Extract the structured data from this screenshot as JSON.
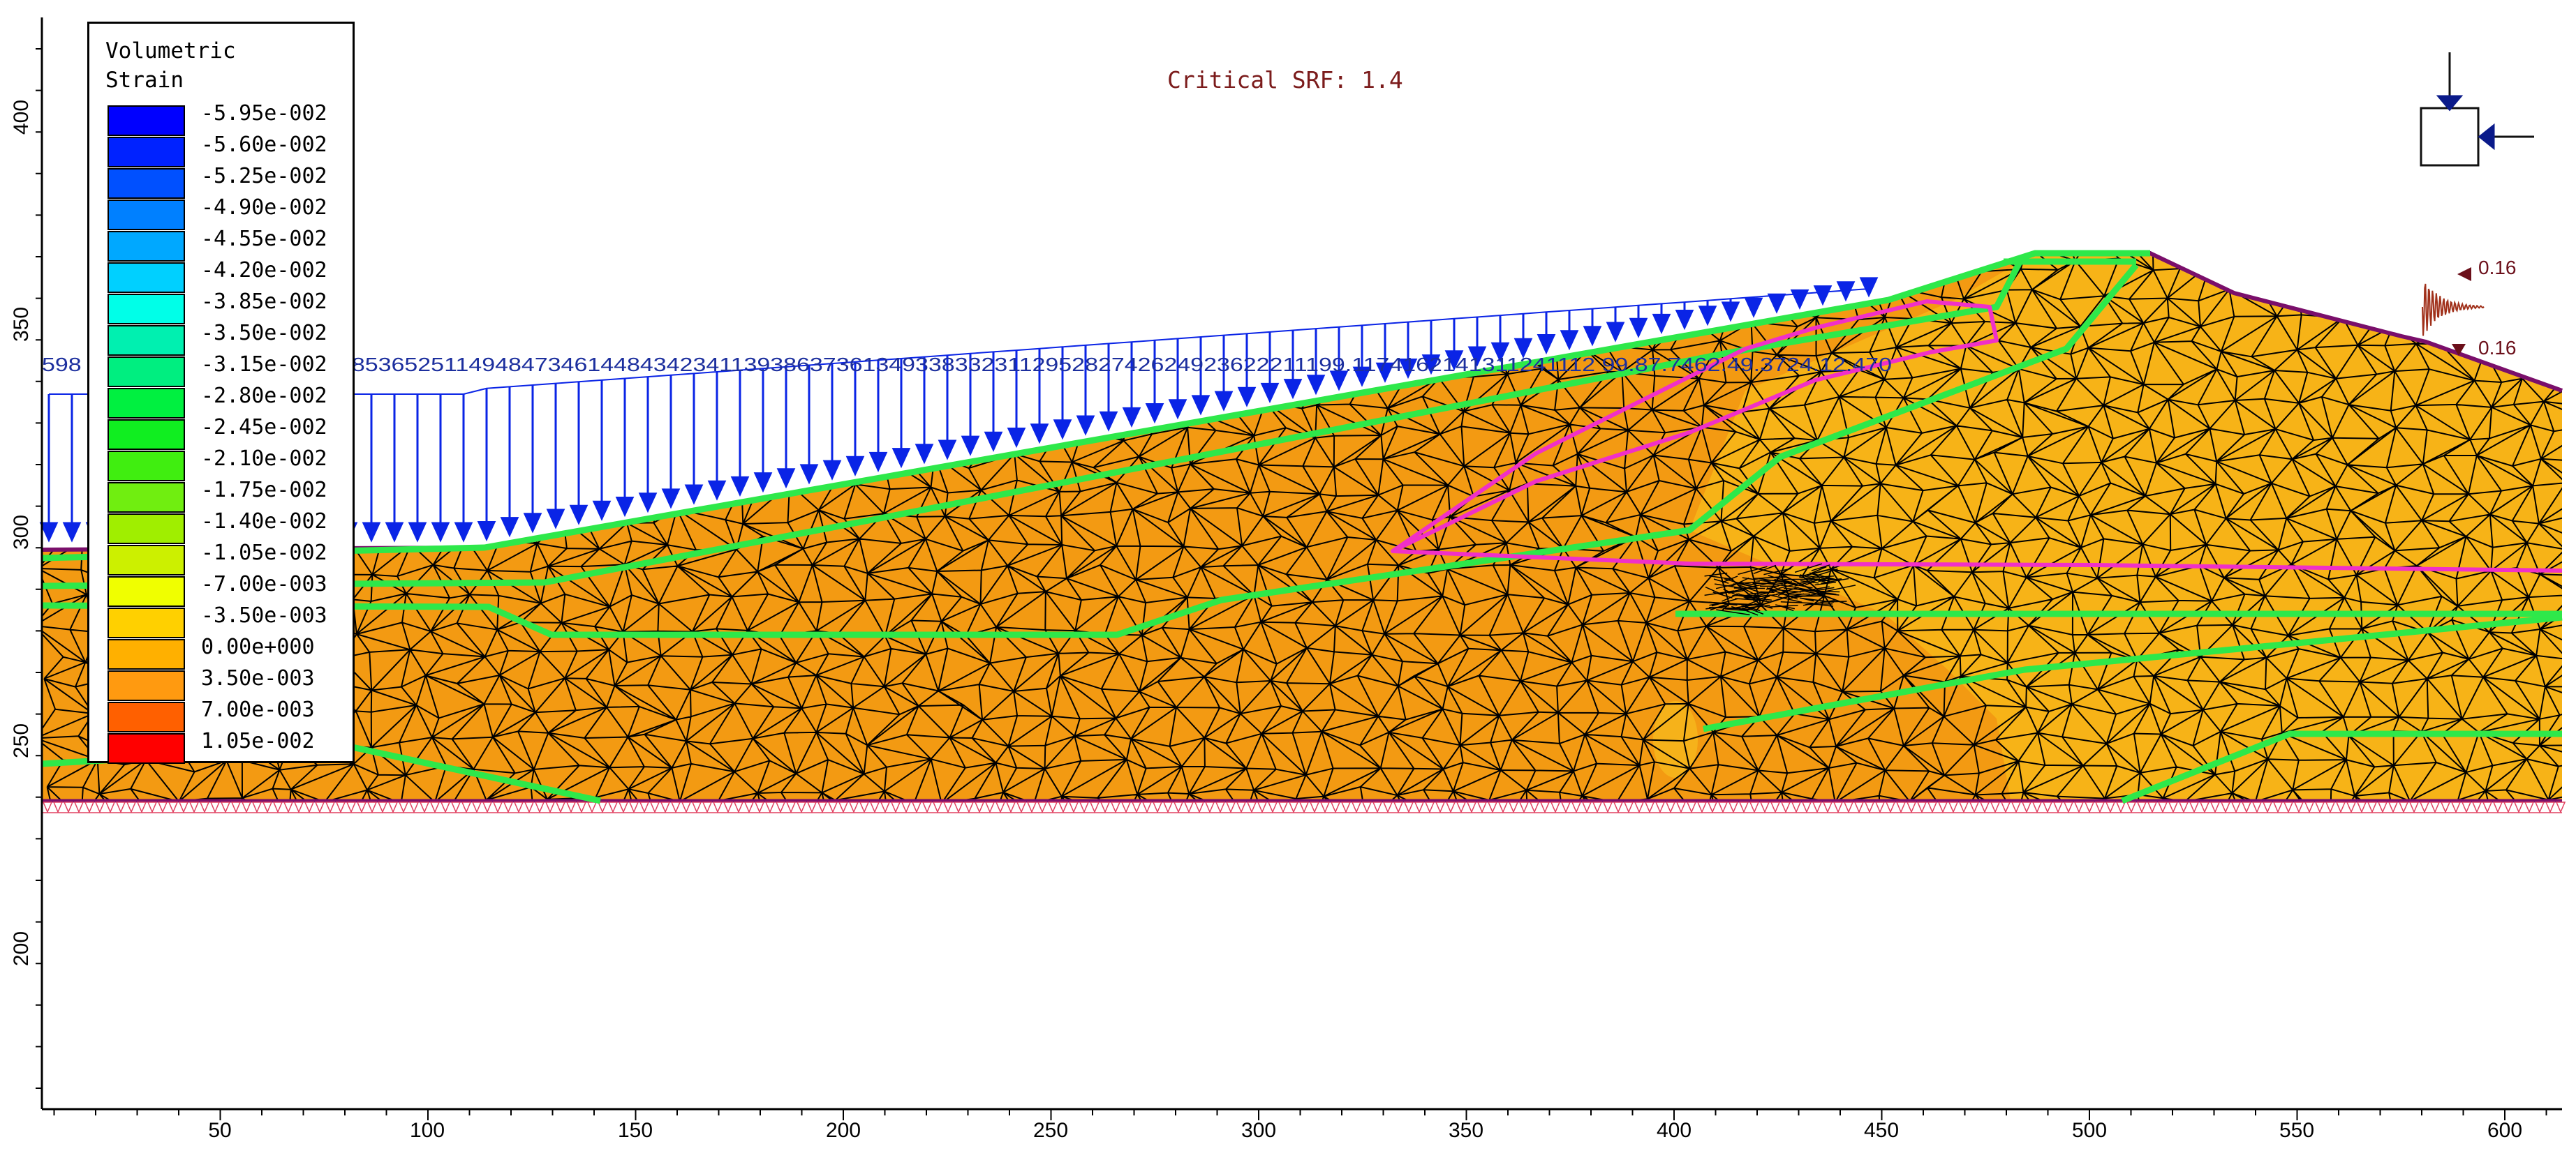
{
  "header": {
    "critical_srf": "Critical SRF: 1.4"
  },
  "legend": {
    "title": "Volumetric\nStrain",
    "entries": [
      {
        "label": "-5.95e-002",
        "color": "#0000ff"
      },
      {
        "label": "-5.60e-002",
        "color": "#0022ff"
      },
      {
        "label": "-5.25e-002",
        "color": "#0050ff"
      },
      {
        "label": "-4.90e-002",
        "color": "#0080ff"
      },
      {
        "label": "-4.55e-002",
        "color": "#00a8ff"
      },
      {
        "label": "-4.20e-002",
        "color": "#00d0ff"
      },
      {
        "label": "-3.85e-002",
        "color": "#00ffe8"
      },
      {
        "label": "-3.50e-002",
        "color": "#00f0b0"
      },
      {
        "label": "-3.15e-002",
        "color": "#00ee80"
      },
      {
        "label": "-2.80e-002",
        "color": "#00f040"
      },
      {
        "label": "-2.45e-002",
        "color": "#10ee20"
      },
      {
        "label": "-2.10e-002",
        "color": "#40ee10"
      },
      {
        "label": "-1.75e-002",
        "color": "#70ee10"
      },
      {
        "label": "-1.40e-002",
        "color": "#a0ee00"
      },
      {
        "label": "-1.05e-002",
        "color": "#ccf000"
      },
      {
        "label": "-7.00e-003",
        "color": "#f0ff00"
      },
      {
        "label": "-3.50e-003",
        "color": "#ffd000"
      },
      {
        "label": "0.00e+000",
        "color": "#ffb000"
      },
      {
        "label": "3.50e-003",
        "color": "#ff9a10"
      },
      {
        "label": "7.00e-003",
        "color": "#ff6000"
      },
      {
        "label": "1.05e-002",
        "color": "#ff0000"
      }
    ]
  },
  "axes": {
    "x_ticks": [
      "50",
      "100",
      "150",
      "200",
      "250",
      "300",
      "350",
      "400",
      "450",
      "500",
      "550",
      "600"
    ],
    "y_ticks": [
      "400",
      "350",
      "300",
      "250",
      "200"
    ]
  },
  "load_labels": "598 ... 5965959858573561548536525114948473461448434234113938637361349338332311295282742624923622211199.1174162141311241112 99.87.7462.49.3724.12.470",
  "seismic": {
    "label_top": "0.16",
    "label_bottom": "0.16"
  },
  "colors": {
    "soil_main": "#f39a12",
    "soil_light": "#f7b317",
    "soil_cap": "#f6b21a",
    "mesh": "#000000",
    "boundary": "#7a0f6b",
    "piezo": "#2ee84a",
    "slip": "#f030c8",
    "load_arrow": "#0a24e6",
    "load_text": "#1c2f9e",
    "fixity": "#e04060"
  }
}
